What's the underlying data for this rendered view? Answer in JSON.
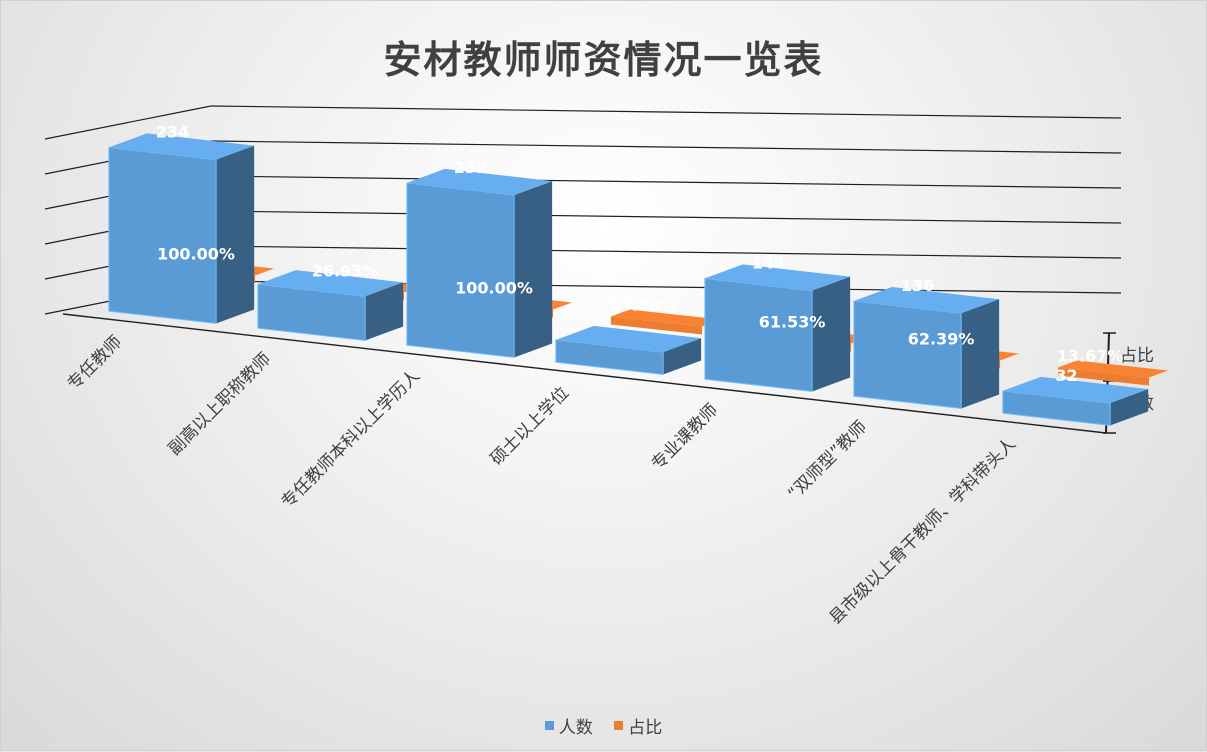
{
  "chart_data": {
    "type": "bar",
    "title": "安材教师师资情况一览表",
    "categories": [
      "专任教师",
      "副高以上职称教师",
      "专任教师本科以上学历人",
      "硕士以上学位",
      "专业课教师",
      "“双师型”教师",
      "县市级以上骨干教师、学科带头人"
    ],
    "series": [
      {
        "name": "人数",
        "values": [
          234,
          63,
          232,
          32,
          144,
          136,
          32
        ],
        "labels": [
          "234",
          "",
          "232",
          "",
          "144",
          "136",
          "32"
        ]
      },
      {
        "name": "占比",
        "values": [
          100.0,
          26.93,
          100.0,
          13.68,
          61.53,
          62.39,
          13.67
        ],
        "labels": [
          "100.00%",
          "26.93%",
          "100.00%",
          "13.68%",
          "61.53%",
          "62.39%",
          "13.67%"
        ]
      }
    ],
    "colors": {
      "人数": "#5b9bd5",
      "占比": "#ed7d31"
    },
    "depth_axis_labels": [
      "占比",
      "人数"
    ],
    "legend_position": "bottom",
    "grid": true
  }
}
